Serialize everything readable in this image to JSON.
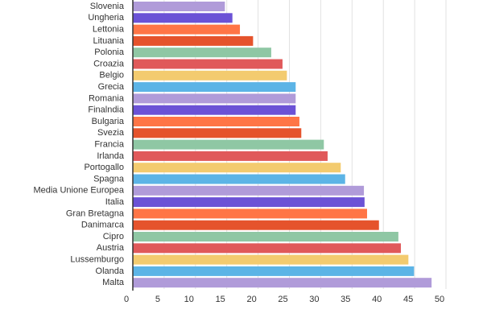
{
  "chart_data": {
    "type": "hbar",
    "categories": [
      "Slovenia",
      "Ungheria",
      "Lettonia",
      "Lituania",
      "Polonia",
      "Croazia",
      "Belgio",
      "Grecia",
      "Romania",
      "Finalndia",
      "Bulgaria",
      "Svezia",
      "Francia",
      "Irlanda",
      "Portogallo",
      "Spagna",
      "Media Unione Europea",
      "Italia",
      "Gran Bretagna",
      "Danimarca",
      "Cipro",
      "Austria",
      "Lussemburgo",
      "Olanda",
      "Malta"
    ],
    "values": [
      14.7,
      15.9,
      17.1,
      19.2,
      22.1,
      23.9,
      24.6,
      26.0,
      26.0,
      26.0,
      26.6,
      26.9,
      30.5,
      31.1,
      33.2,
      33.9,
      36.9,
      37.0,
      37.4,
      39.3,
      42.4,
      42.8,
      44.0,
      44.9,
      47.7
    ],
    "colors": [
      "#b09bd9",
      "#6b52d6",
      "#ff7546",
      "#e5532c",
      "#8fc7a4",
      "#e0595a",
      "#f3cb6f",
      "#5cb4e6",
      "#b09bd9",
      "#6b52d6",
      "#ff7546",
      "#e5532c",
      "#8fc7a4",
      "#e0595a",
      "#f3cb6f",
      "#5cb4e6",
      "#b09bd9",
      "#6b52d6",
      "#ff7546",
      "#e5532c",
      "#8fc7a4",
      "#e0595a",
      "#f3cb6f",
      "#5cb4e6",
      "#b09bd9"
    ],
    "xlim": [
      0,
      50
    ],
    "xticks": [
      0,
      5,
      10,
      15,
      20,
      25,
      30,
      35,
      40,
      45,
      50
    ],
    "grid": true
  }
}
